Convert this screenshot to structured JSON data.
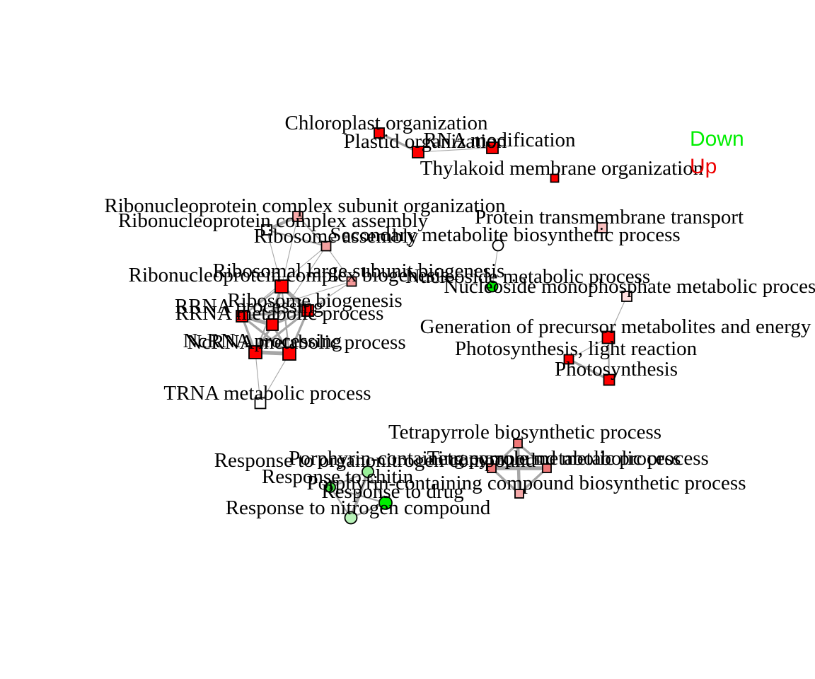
{
  "legend": [
    {
      "label": "Down",
      "color": "#00ee00"
    },
    {
      "label": "Up",
      "color": "#ee0000"
    }
  ],
  "nodes": [
    {
      "id": "chloroplast_org",
      "label": "Chloroplast organization",
      "shape": "square",
      "fill": "#ff0000"
    },
    {
      "id": "plastid_org",
      "label": "Plastid organization",
      "shape": "square",
      "fill": "#ff0000"
    },
    {
      "id": "rna_mod",
      "label": "RNA modification",
      "shape": "square",
      "fill": "#ff0000"
    },
    {
      "id": "thylakoid",
      "label": "Thylakoid membrane organization",
      "shape": "square",
      "fill": "#ff0000"
    },
    {
      "id": "rnp_subunit",
      "label": "Ribonucleoprotein complex subunit organization",
      "shape": "square",
      "fill": "#f8a8a8"
    },
    {
      "id": "rnp_assembly",
      "label": "Ribonucleoprotein complex assembly",
      "shape": "square",
      "fill": "#ffffff"
    },
    {
      "id": "ribosome_assembly",
      "label": "Ribosome assembly",
      "shape": "square",
      "fill": "#f4a0a0"
    },
    {
      "id": "secondary_met",
      "label": "Secondary metabolite biosynthetic process",
      "shape": "circle",
      "fill": "#ffffff"
    },
    {
      "id": "protein_tm",
      "label": "Protein transmembrane transport",
      "shape": "square",
      "fill": "#f8c0c0"
    },
    {
      "id": "rnp_biogenesis",
      "label": "Ribonucleoprotein complex biogenesis",
      "shape": "square",
      "fill": "#ff0000"
    },
    {
      "id": "ribosomal_large",
      "label": "Ribosomal large subunit biogenesis",
      "shape": "square",
      "fill": "#f49898"
    },
    {
      "id": "nucleoside_met",
      "label": "Nucleoside metabolic process",
      "shape": "circle",
      "fill": "#00ee00"
    },
    {
      "id": "nucleotide_mono",
      "label": "Nucleoside monophosphate metabolic process",
      "shape": "square",
      "fill": "#ffe0e0"
    },
    {
      "id": "ribosome_bio",
      "label": "Ribosome biogenesis",
      "shape": "square",
      "fill": "#ff0000"
    },
    {
      "id": "rrna_processing",
      "label": "RRNA processing",
      "shape": "square",
      "fill": "#ff0000"
    },
    {
      "id": "rrna_met",
      "label": "RRNA metabolic process",
      "shape": "square",
      "fill": "#ff0000"
    },
    {
      "id": "ncrna_processing",
      "label": "NcRNA processing",
      "shape": "square",
      "fill": "#ff0000"
    },
    {
      "id": "ncrna_met",
      "label": "NcRNA metabolic process",
      "shape": "square",
      "fill": "#ff0000"
    },
    {
      "id": "trna_met",
      "label": "TRNA metabolic process",
      "shape": "square",
      "fill": "#ffffff"
    },
    {
      "id": "gen_precursor",
      "label": "Generation of precursor metabolites and energy",
      "shape": "square",
      "fill": "#ff0000"
    },
    {
      "id": "photo_light",
      "label": "Photosynthesis, light reaction",
      "shape": "square",
      "fill": "#ff0000"
    },
    {
      "id": "photosynthesis",
      "label": "Photosynthesis",
      "shape": "square",
      "fill": "#ff0000"
    },
    {
      "id": "tetrapyrrole_bio",
      "label": "Tetrapyrrole biosynthetic process",
      "shape": "square",
      "fill": "#f07878"
    },
    {
      "id": "porphyrin_met",
      "label": "Porphyrin-containing compound metabolic process",
      "shape": "square",
      "fill": "#f07878"
    },
    {
      "id": "tetrapyrrole_met",
      "label": "Tetrapyrrole metabolic process",
      "shape": "square",
      "fill": "#f07878"
    },
    {
      "id": "porphyrin_bio",
      "label": "Porphyrin-containing compound biosynthetic process",
      "shape": "square",
      "fill": "#f4a8a8"
    },
    {
      "id": "resp_organonitrogen",
      "label": "Response to organonitrogen compound",
      "shape": "circle",
      "fill": "#98ee98"
    },
    {
      "id": "resp_chitin",
      "label": "Response to chitin",
      "shape": "circle",
      "fill": "#40dd40"
    },
    {
      "id": "resp_drug",
      "label": "Response to drug",
      "shape": "circle",
      "fill": "#00ee00"
    },
    {
      "id": "resp_nitrogen",
      "label": "Response to nitrogen compound",
      "shape": "circle",
      "fill": "#b8f2b8"
    }
  ],
  "edges": [
    [
      "chloroplast_org",
      "plastid_org",
      3
    ],
    [
      "plastid_org",
      "rna_mod",
      1
    ],
    [
      "rnp_subunit",
      "rnp_assembly",
      4
    ],
    [
      "rnp_subunit",
      "ribosome_assembly",
      2
    ],
    [
      "rnp_assembly",
      "ribosome_assembly",
      2
    ],
    [
      "rnp_subunit",
      "rnp_biogenesis",
      1
    ],
    [
      "rnp_assembly",
      "rnp_biogenesis",
      1
    ],
    [
      "ribosome_assembly",
      "ribosomal_large",
      1
    ],
    [
      "ribosome_assembly",
      "rrna_processing",
      1
    ],
    [
      "ribosome_assembly",
      "ncrna_processing",
      1
    ],
    [
      "rnp_biogenesis",
      "ribosome_bio",
      5
    ],
    [
      "rnp_biogenesis",
      "rrna_processing",
      2
    ],
    [
      "rnp_biogenesis",
      "rrna_met",
      2
    ],
    [
      "rnp_biogenesis",
      "ncrna_processing",
      2
    ],
    [
      "rnp_biogenesis",
      "ncrna_met",
      2
    ],
    [
      "ribosomal_large",
      "rrna_processing",
      1
    ],
    [
      "ribosomal_large",
      "ribosome_bio",
      1
    ],
    [
      "ribosome_bio",
      "rrna_processing",
      3
    ],
    [
      "ribosome_bio",
      "rrna_met",
      3
    ],
    [
      "ribosome_bio",
      "ncrna_processing",
      3
    ],
    [
      "ribosome_bio",
      "ncrna_met",
      3
    ],
    [
      "rrna_processing",
      "rrna_met",
      5
    ],
    [
      "rrna_processing",
      "ncrna_processing",
      3
    ],
    [
      "rrna_processing",
      "ncrna_met",
      3
    ],
    [
      "rrna_met",
      "ncrna_processing",
      3
    ],
    [
      "rrna_met",
      "ncrna_met",
      3
    ],
    [
      "ncrna_processing",
      "ncrna_met",
      5
    ],
    [
      "ncrna_met",
      "trna_met",
      1
    ],
    [
      "ncrna_processing",
      "trna_met",
      1
    ],
    [
      "secondary_met",
      "nucleoside_met",
      1
    ],
    [
      "nucleotide_mono",
      "gen_precursor",
      1
    ],
    [
      "gen_precursor",
      "photo_light",
      1
    ],
    [
      "photo_light",
      "photosynthesis",
      3
    ],
    [
      "gen_precursor",
      "photosynthesis",
      2
    ],
    [
      "tetrapyrrole_bio",
      "porphyrin_met",
      3
    ],
    [
      "tetrapyrrole_bio",
      "tetrapyrrole_met",
      3
    ],
    [
      "tetrapyrrole_bio",
      "porphyrin_bio",
      4
    ],
    [
      "porphyrin_met",
      "tetrapyrrole_met",
      5
    ],
    [
      "porphyrin_met",
      "porphyrin_bio",
      3
    ],
    [
      "tetrapyrrole_met",
      "porphyrin_bio",
      3
    ],
    [
      "resp_organonitrogen",
      "resp_chitin",
      2
    ],
    [
      "resp_organonitrogen",
      "resp_drug",
      2
    ],
    [
      "resp_organonitrogen",
      "resp_nitrogen",
      4
    ],
    [
      "resp_chitin",
      "resp_drug",
      2
    ],
    [
      "resp_chitin",
      "resp_nitrogen",
      2
    ],
    [
      "resp_drug",
      "resp_nitrogen",
      2
    ]
  ]
}
